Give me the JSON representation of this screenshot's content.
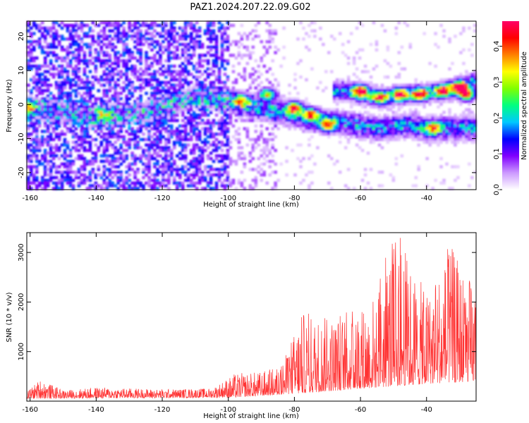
{
  "title": "PAZ1.2024.207.22.09.G02",
  "chart_data": [
    {
      "type": "heatmap",
      "xlabel": "Height of straight line (km)",
      "ylabel": "Frequency (Hz)",
      "xlim": [
        -161,
        -25
      ],
      "ylim": [
        -25,
        24.5
      ],
      "x_ticks": [
        "-160",
        "-140",
        "-120",
        "-100",
        "-80",
        "-60",
        "-40"
      ],
      "y_ticks": [
        "-20",
        "-10",
        "0",
        "10",
        "20"
      ],
      "colorbar": {
        "label": "Normalized spectral amplitude",
        "range": [
          0,
          0.47
        ],
        "ticks": [
          "0.0",
          "0.1",
          "0.2",
          "0.3",
          "0.4"
        ],
        "colors": [
          "#ffffff",
          "#cc99ff",
          "#8000ff",
          "#0000ff",
          "#00c8ff",
          "#00ff80",
          "#80ff00",
          "#ffff00",
          "#ff8000",
          "#ff0000",
          "#ff0066"
        ]
      },
      "ridge": [
        {
          "x": -160,
          "y": -1
        },
        {
          "x": -150,
          "y": -2
        },
        {
          "x": -140,
          "y": -4
        },
        {
          "x": -125,
          "y": -2
        },
        {
          "x": -110,
          "y": 2
        },
        {
          "x": -100,
          "y": 1
        },
        {
          "x": -90,
          "y": -1
        },
        {
          "x": -80,
          "y": -3
        },
        {
          "x": -70,
          "y": -5
        },
        {
          "x": -62,
          "y": -6
        },
        {
          "x": -55,
          "y": -7
        },
        {
          "x": -45,
          "y": -6
        },
        {
          "x": -40,
          "y": -7
        }
      ],
      "upper_ridge": [
        {
          "x": -65,
          "y": 4
        },
        {
          "x": -55,
          "y": 2
        },
        {
          "x": -45,
          "y": 3
        },
        {
          "x": -35,
          "y": 4
        },
        {
          "x": -25,
          "y": 7
        }
      ],
      "hot_spots": [
        {
          "x": -160,
          "y": -1,
          "v": 0.22
        },
        {
          "x": -138,
          "y": -3,
          "v": 0.2
        },
        {
          "x": -96,
          "y": 1,
          "v": 0.25
        },
        {
          "x": -88,
          "y": 3,
          "v": 0.3
        },
        {
          "x": -80,
          "y": -1,
          "v": 0.38
        },
        {
          "x": -75,
          "y": -3,
          "v": 0.32
        },
        {
          "x": -70,
          "y": -6,
          "v": 0.35
        },
        {
          "x": -60,
          "y": 4,
          "v": 0.43
        },
        {
          "x": -54,
          "y": 2,
          "v": 0.3
        },
        {
          "x": -48,
          "y": 3,
          "v": 0.4
        },
        {
          "x": -42,
          "y": 3,
          "v": 0.36
        },
        {
          "x": -38,
          "y": -7,
          "v": 0.28
        },
        {
          "x": -35,
          "y": 4,
          "v": 0.38
        },
        {
          "x": -30,
          "y": 5,
          "v": 0.42
        },
        {
          "x": -28,
          "y": 3,
          "v": 0.45
        }
      ]
    },
    {
      "type": "line",
      "xlabel": "Height of straight line (km)",
      "ylabel": "SNR (10 * v/v)",
      "xlim": [
        -161,
        -25
      ],
      "ylim": [
        0,
        3400
      ],
      "x_ticks": [
        "-160",
        "-140",
        "-120",
        "-100",
        "-80",
        "-60",
        "-40"
      ],
      "y_ticks": [
        "1000",
        "2000",
        "3000"
      ],
      "color": "#ff3333",
      "envelope": [
        {
          "x": -161,
          "y": 200
        },
        {
          "x": -157,
          "y": 440
        },
        {
          "x": -150,
          "y": 220
        },
        {
          "x": -140,
          "y": 280
        },
        {
          "x": -120,
          "y": 240
        },
        {
          "x": -105,
          "y": 260
        },
        {
          "x": -98,
          "y": 560
        },
        {
          "x": -90,
          "y": 600
        },
        {
          "x": -85,
          "y": 700
        },
        {
          "x": -82,
          "y": 1000
        },
        {
          "x": -78,
          "y": 1800
        },
        {
          "x": -70,
          "y": 1700
        },
        {
          "x": -65,
          "y": 1800
        },
        {
          "x": -60,
          "y": 2000
        },
        {
          "x": -55,
          "y": 2200
        },
        {
          "x": -52,
          "y": 3100
        },
        {
          "x": -48,
          "y": 3350
        },
        {
          "x": -45,
          "y": 2800
        },
        {
          "x": -40,
          "y": 2200
        },
        {
          "x": -35,
          "y": 2800
        },
        {
          "x": -33,
          "y": 3200
        },
        {
          "x": -30,
          "y": 2800
        },
        {
          "x": -25,
          "y": 2300
        }
      ],
      "baseline": [
        {
          "x": -161,
          "y": 50
        },
        {
          "x": -100,
          "y": 70
        },
        {
          "x": -80,
          "y": 150
        },
        {
          "x": -60,
          "y": 250
        },
        {
          "x": -40,
          "y": 350
        },
        {
          "x": -25,
          "y": 400
        }
      ]
    }
  ]
}
